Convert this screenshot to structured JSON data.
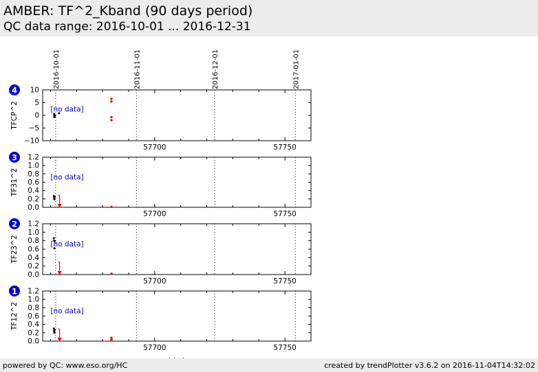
{
  "header": {
    "title": "AMBER: TF^2_Kband (90 days period)",
    "subtitle": "QC data range: 2016-10-01 ... 2016-12-31"
  },
  "footer": {
    "left": "powered by QC: www.eso.org/HC",
    "right": "created by trendPlotter v3.6.2 on 2016-11-04T14:32:02"
  },
  "colors": {
    "badge": "#0000cc",
    "annotation": "#0000cc",
    "highlight": "#ff0000",
    "points": "#000000",
    "background": "#ececec"
  },
  "chart_data": {
    "type": "scatter",
    "xlabel": "mjd-obs",
    "xlim": [
      57657,
      57760
    ],
    "x_ticks": [
      57700,
      57750
    ],
    "date_markers": [
      {
        "mjd": 57662,
        "label": "2016-10-01"
      },
      {
        "mjd": 57693,
        "label": "2016-11-01"
      },
      {
        "mjd": 57723,
        "label": "2016-12-01"
      },
      {
        "mjd": 57754,
        "label": "2017-01-01"
      }
    ],
    "panels": [
      {
        "badge": "4",
        "ylabel": "TFCP^2",
        "ylim": [
          -10,
          10
        ],
        "yticks": [
          10,
          5,
          0,
          -5,
          -10
        ],
        "ytick_labels": [
          "10",
          "5",
          "0",
          "−5",
          "−10"
        ],
        "annotation": "[no data]",
        "annotation_mjd": 57660,
        "annotation_y": 2.6,
        "points": [
          [
            57661.4,
            0.5
          ],
          [
            57661.4,
            -0.4
          ],
          [
            57661.6,
            0.1
          ],
          [
            57661.8,
            -0.2
          ],
          [
            57661.5,
            -0.7
          ],
          [
            57663.3,
            0.8
          ]
        ],
        "highlight_points": [
          [
            57683.4,
            6.5
          ],
          [
            57683.4,
            5.4
          ],
          [
            57683.4,
            -0.7
          ],
          [
            57683.4,
            -1.9
          ]
        ],
        "limit_arrow": null
      },
      {
        "badge": "3",
        "ylabel": "TF31^2",
        "ylim": [
          0,
          1.2
        ],
        "yticks": [
          1.2,
          1.0,
          0.8,
          0.6,
          0.4,
          0.2,
          0.0
        ],
        "ytick_labels": [
          "1.2",
          "1.0",
          "0.8",
          "0.6",
          "0.4",
          "0.2",
          "0.0"
        ],
        "annotation": "[no data]",
        "annotation_mjd": 57660,
        "annotation_y": 0.73,
        "points": [
          [
            57661.3,
            0.27
          ],
          [
            57661.4,
            0.22
          ],
          [
            57661.6,
            0.25
          ],
          [
            57661.5,
            0.19
          ]
        ],
        "highlight_points": [
          [
            57683.4,
            0.01
          ]
        ],
        "limit_arrow": {
          "mjd": 57663.5,
          "from": 0.29,
          "to": 0.0
        }
      },
      {
        "badge": "2",
        "ylabel": "TF23^2",
        "ylim": [
          0,
          1.2
        ],
        "yticks": [
          1.2,
          1.0,
          0.8,
          0.6,
          0.4,
          0.2,
          0.0
        ],
        "ytick_labels": [
          "1.2",
          "1.0",
          "0.8",
          "0.6",
          "0.4",
          "0.2",
          "0.0"
        ],
        "annotation": "[no data]",
        "annotation_mjd": 57660,
        "annotation_y": 0.73,
        "points": [
          [
            57661.3,
            0.86
          ],
          [
            57661.4,
            0.8
          ],
          [
            57661.6,
            0.79
          ],
          [
            57661.5,
            0.62
          ]
        ],
        "highlight_points": [
          [
            57683.4,
            0.02
          ]
        ],
        "limit_arrow": {
          "mjd": 57663.5,
          "from": 0.3,
          "to": 0.0
        }
      },
      {
        "badge": "1",
        "ylabel": "TF12^2",
        "ylim": [
          0,
          1.2
        ],
        "yticks": [
          1.2,
          1.0,
          0.8,
          0.6,
          0.4,
          0.2,
          0.0
        ],
        "ytick_labels": [
          "1.2",
          "1.0",
          "0.8",
          "0.6",
          "0.4",
          "0.2",
          "0.0"
        ],
        "annotation": "[no data]",
        "annotation_mjd": 57660,
        "annotation_y": 0.73,
        "points": [
          [
            57661.3,
            0.3
          ],
          [
            57661.4,
            0.24
          ],
          [
            57661.6,
            0.27
          ],
          [
            57661.5,
            0.2
          ]
        ],
        "highlight_points": [
          [
            57683.4,
            0.08
          ],
          [
            57683.4,
            0.04
          ],
          [
            57683.4,
            0.02
          ]
        ],
        "limit_arrow": {
          "mjd": 57663.5,
          "from": 0.29,
          "to": 0.0
        }
      }
    ]
  }
}
